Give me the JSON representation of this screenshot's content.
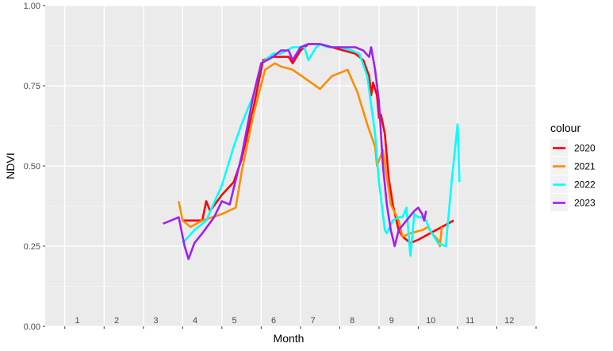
{
  "chart_data": {
    "type": "line",
    "title": "",
    "xlabel": "Month",
    "ylabel": "NDVI",
    "legend_title": "colour",
    "legend_position": "right",
    "grid": true,
    "xlim": [
      0,
      12.5
    ],
    "ylim": [
      0,
      1
    ],
    "x_month_labels": [
      "1",
      "2",
      "3",
      "4",
      "5",
      "6",
      "7",
      "8",
      "9",
      "10",
      "11",
      "12"
    ],
    "y_tick_labels": [
      "0.00",
      "0.25",
      "0.50",
      "0.75",
      "1.00"
    ],
    "y_ticks": [
      0,
      0.25,
      0.5,
      0.75,
      1.0
    ],
    "series": [
      {
        "name": "2020",
        "color": "#ff0000",
        "points": [
          [
            3.5,
            0.33
          ],
          [
            4.0,
            0.33
          ],
          [
            4.1,
            0.39
          ],
          [
            4.2,
            0.36
          ],
          [
            4.5,
            0.41
          ],
          [
            4.8,
            0.45
          ],
          [
            5.0,
            0.52
          ],
          [
            5.3,
            0.68
          ],
          [
            5.55,
            0.83
          ],
          [
            5.8,
            0.84
          ],
          [
            6.0,
            0.84
          ],
          [
            6.2,
            0.84
          ],
          [
            6.3,
            0.82
          ],
          [
            6.5,
            0.86
          ],
          [
            6.7,
            0.88
          ],
          [
            7.0,
            0.88
          ],
          [
            7.3,
            0.87
          ],
          [
            7.6,
            0.86
          ],
          [
            7.9,
            0.85
          ],
          [
            8.1,
            0.83
          ],
          [
            8.25,
            0.78
          ],
          [
            8.3,
            0.72
          ],
          [
            8.35,
            0.76
          ],
          [
            8.45,
            0.72
          ],
          [
            8.5,
            0.65
          ],
          [
            8.55,
            0.66
          ],
          [
            8.65,
            0.6
          ],
          [
            8.75,
            0.46
          ],
          [
            8.85,
            0.38
          ],
          [
            9.0,
            0.3
          ],
          [
            9.1,
            0.28
          ],
          [
            9.3,
            0.26
          ],
          [
            9.5,
            0.27
          ],
          [
            9.8,
            0.29
          ],
          [
            10.1,
            0.31
          ],
          [
            10.4,
            0.33
          ]
        ]
      },
      {
        "name": "2021",
        "color": "#ff8c00",
        "points": [
          [
            3.4,
            0.39
          ],
          [
            3.5,
            0.33
          ],
          [
            3.7,
            0.31
          ],
          [
            4.0,
            0.33
          ],
          [
            4.5,
            0.35
          ],
          [
            4.85,
            0.37
          ],
          [
            5.0,
            0.48
          ],
          [
            5.3,
            0.66
          ],
          [
            5.6,
            0.8
          ],
          [
            5.85,
            0.82
          ],
          [
            6.0,
            0.81
          ],
          [
            6.3,
            0.8
          ],
          [
            7.0,
            0.74
          ],
          [
            7.3,
            0.78
          ],
          [
            7.7,
            0.8
          ],
          [
            7.95,
            0.73
          ],
          [
            8.2,
            0.63
          ],
          [
            8.4,
            0.56
          ],
          [
            8.45,
            0.5
          ],
          [
            8.6,
            0.55
          ],
          [
            8.8,
            0.38
          ],
          [
            9.0,
            0.33
          ],
          [
            9.1,
            0.28
          ],
          [
            9.3,
            0.29
          ],
          [
            9.6,
            0.3
          ],
          [
            9.75,
            0.31
          ],
          [
            9.85,
            0.29
          ],
          [
            10.0,
            0.27
          ],
          [
            10.05,
            0.25
          ],
          [
            10.1,
            0.31
          ]
        ]
      },
      {
        "name": "2022",
        "color": "#00ffff",
        "points": [
          [
            3.5,
            0.26
          ],
          [
            3.8,
            0.3
          ],
          [
            4.1,
            0.33
          ],
          [
            4.5,
            0.44
          ],
          [
            4.8,
            0.56
          ],
          [
            5.0,
            0.63
          ],
          [
            5.3,
            0.72
          ],
          [
            5.5,
            0.82
          ],
          [
            5.8,
            0.85
          ],
          [
            6.0,
            0.85
          ],
          [
            6.3,
            0.87
          ],
          [
            6.6,
            0.87
          ],
          [
            6.7,
            0.83
          ],
          [
            6.9,
            0.87
          ],
          [
            7.0,
            0.88
          ],
          [
            7.2,
            0.87
          ],
          [
            7.5,
            0.87
          ],
          [
            7.8,
            0.86
          ],
          [
            8.0,
            0.85
          ],
          [
            8.2,
            0.78
          ],
          [
            8.4,
            0.6
          ],
          [
            8.5,
            0.45
          ],
          [
            8.65,
            0.3
          ],
          [
            8.7,
            0.29
          ],
          [
            8.85,
            0.33
          ],
          [
            9.0,
            0.34
          ],
          [
            9.1,
            0.34
          ],
          [
            9.2,
            0.37
          ],
          [
            9.3,
            0.22
          ],
          [
            9.4,
            0.35
          ],
          [
            9.5,
            0.34
          ],
          [
            9.6,
            0.34
          ],
          [
            9.7,
            0.33
          ],
          [
            9.8,
            0.3
          ],
          [
            10.0,
            0.26
          ],
          [
            10.2,
            0.25
          ],
          [
            10.35,
            0.45
          ],
          [
            10.5,
            0.63
          ],
          [
            10.55,
            0.45
          ]
        ]
      },
      {
        "name": "2023",
        "color": "#a020f0",
        "points": [
          [
            3.0,
            0.32
          ],
          [
            3.2,
            0.33
          ],
          [
            3.4,
            0.34
          ],
          [
            3.55,
            0.25
          ],
          [
            3.65,
            0.21
          ],
          [
            3.8,
            0.26
          ],
          [
            4.0,
            0.29
          ],
          [
            4.3,
            0.34
          ],
          [
            4.5,
            0.39
          ],
          [
            4.7,
            0.38
          ],
          [
            5.0,
            0.53
          ],
          [
            5.3,
            0.72
          ],
          [
            5.5,
            0.82
          ],
          [
            5.8,
            0.84
          ],
          [
            6.0,
            0.86
          ],
          [
            6.2,
            0.86
          ],
          [
            6.3,
            0.83
          ],
          [
            6.5,
            0.87
          ],
          [
            6.7,
            0.88
          ],
          [
            7.0,
            0.88
          ],
          [
            7.3,
            0.87
          ],
          [
            7.6,
            0.87
          ],
          [
            7.9,
            0.87
          ],
          [
            8.1,
            0.86
          ],
          [
            8.25,
            0.84
          ],
          [
            8.3,
            0.87
          ],
          [
            8.4,
            0.8
          ],
          [
            8.5,
            0.7
          ],
          [
            8.6,
            0.5
          ],
          [
            8.7,
            0.38
          ],
          [
            8.8,
            0.3
          ],
          [
            8.9,
            0.25
          ],
          [
            9.0,
            0.3
          ],
          [
            9.2,
            0.33
          ],
          [
            9.4,
            0.36
          ],
          [
            9.5,
            0.37
          ],
          [
            9.6,
            0.35
          ],
          [
            9.65,
            0.33
          ],
          [
            9.7,
            0.36
          ]
        ]
      }
    ]
  }
}
